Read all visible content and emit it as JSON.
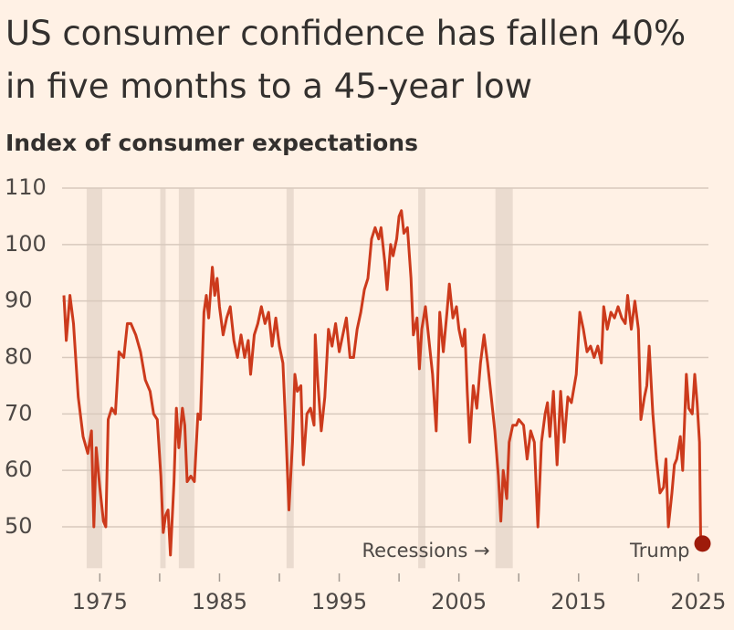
{
  "chart_data": {
    "type": "line",
    "title": "US consumer confidence has fallen 40% in five months to a 45-year low",
    "subtitle": "Index of consumer expectations",
    "x": [
      1972.0,
      1972.2,
      1972.5,
      1972.8,
      1973.2,
      1973.6,
      1974.0,
      1974.3,
      1974.5,
      1974.7,
      1975.0,
      1975.3,
      1975.5,
      1975.7,
      1976.0,
      1976.3,
      1976.6,
      1977.0,
      1977.3,
      1977.6,
      1978.0,
      1978.4,
      1978.8,
      1979.2,
      1979.5,
      1979.8,
      1980.1,
      1980.3,
      1980.5,
      1980.7,
      1980.9,
      1981.2,
      1981.4,
      1981.6,
      1981.9,
      1982.1,
      1982.3,
      1982.6,
      1982.9,
      1983.2,
      1983.4,
      1983.7,
      1983.9,
      1984.1,
      1984.4,
      1984.6,
      1984.8,
      1985.0,
      1985.3,
      1985.6,
      1985.9,
      1986.2,
      1986.5,
      1986.8,
      1987.1,
      1987.4,
      1987.6,
      1987.9,
      1988.2,
      1988.5,
      1988.8,
      1989.1,
      1989.4,
      1989.7,
      1990.0,
      1990.3,
      1990.5,
      1990.8,
      1991.1,
      1991.3,
      1991.5,
      1991.8,
      1992.0,
      1992.3,
      1992.6,
      1992.9,
      1993.0,
      1993.2,
      1993.5,
      1993.8,
      1994.1,
      1994.4,
      1994.7,
      1995.0,
      1995.3,
      1995.6,
      1995.9,
      1996.2,
      1996.5,
      1996.8,
      1997.1,
      1997.4,
      1997.7,
      1998.0,
      1998.3,
      1998.5,
      1998.8,
      1999.0,
      1999.3,
      1999.5,
      1999.8,
      2000.0,
      2000.2,
      2000.4,
      2000.7,
      2001.0,
      2001.2,
      2001.5,
      2001.7,
      2001.9,
      2002.2,
      2002.5,
      2002.8,
      2003.1,
      2003.4,
      2003.7,
      2004.0,
      2004.2,
      2004.5,
      2004.8,
      2005.0,
      2005.3,
      2005.5,
      2005.7,
      2005.9,
      2006.2,
      2006.5,
      2006.8,
      2007.1,
      2007.4,
      2007.7,
      2008.0,
      2008.3,
      2008.5,
      2008.7,
      2009.0,
      2009.2,
      2009.5,
      2009.8,
      2010.0,
      2010.4,
      2010.7,
      2011.0,
      2011.3,
      2011.6,
      2011.9,
      2012.2,
      2012.4,
      2012.6,
      2012.9,
      2013.2,
      2013.5,
      2013.8,
      2014.1,
      2014.4,
      2014.8,
      2015.1,
      2015.4,
      2015.7,
      2016.0,
      2016.3,
      2016.6,
      2016.9,
      2017.1,
      2017.4,
      2017.7,
      2018.0,
      2018.3,
      2018.6,
      2018.9,
      2019.1,
      2019.4,
      2019.7,
      2020.0,
      2020.2,
      2020.5,
      2020.7,
      2020.9,
      2021.2,
      2021.5,
      2021.8,
      2022.1,
      2022.3,
      2022.5,
      2022.8,
      2023.0,
      2023.2,
      2023.5,
      2023.7,
      2024.0,
      2024.2,
      2024.5,
      2024.7,
      2024.9,
      2025.1,
      2025.2
    ],
    "values": [
      91,
      83,
      91,
      86,
      73,
      66,
      63,
      67,
      50,
      64,
      57,
      51,
      50,
      69,
      71,
      70,
      81,
      80,
      86,
      86,
      84,
      81,
      76,
      74,
      70,
      69,
      59,
      49,
      52,
      53,
      45,
      58,
      71,
      64,
      71,
      68,
      58,
      59,
      58,
      70,
      69,
      88,
      91,
      87,
      96,
      91,
      94,
      89,
      84,
      87,
      89,
      83,
      80,
      84,
      80,
      83,
      77,
      84,
      86,
      89,
      86,
      88,
      82,
      87,
      82,
      79,
      69,
      53,
      65,
      77,
      74,
      75,
      61,
      70,
      71,
      68,
      84,
      76,
      67,
      73,
      85,
      82,
      86,
      81,
      84,
      87,
      80,
      80,
      85,
      88,
      92,
      94,
      101,
      103,
      101,
      103,
      97,
      92,
      100,
      98,
      101,
      105,
      106,
      102,
      103,
      94,
      84,
      87,
      78,
      85,
      89,
      83,
      77,
      67,
      88,
      81,
      88,
      93,
      87,
      89,
      85,
      82,
      85,
      74,
      65,
      75,
      71,
      79,
      84,
      79,
      73,
      67,
      59,
      51,
      60,
      55,
      65,
      68,
      68,
      69,
      68,
      62,
      67,
      65,
      50,
      65,
      70,
      72,
      66,
      74,
      61,
      74,
      65,
      73,
      72,
      77,
      88,
      85,
      81,
      82,
      80,
      82,
      79,
      89,
      85,
      88,
      87,
      89,
      87,
      86,
      91,
      85,
      90,
      85,
      69,
      73,
      75,
      82,
      70,
      62,
      56,
      57,
      62,
      50,
      56,
      61,
      62,
      66,
      60,
      77,
      71,
      70,
      77,
      72,
      65,
      48
    ],
    "color": "#cc3a1c",
    "recessions": [
      [
        1973.9,
        1975.2
      ],
      [
        1980.05,
        1980.5
      ],
      [
        1981.6,
        1982.9
      ],
      [
        1990.6,
        1991.2
      ],
      [
        2001.6,
        2002.2
      ],
      [
        2008.05,
        2009.5
      ]
    ],
    "recession_color": "#eadbcf",
    "xlim": [
      1972,
      2026
    ],
    "ylim": [
      43,
      110
    ],
    "xticks": [
      1975,
      1985,
      1995,
      2005,
      2015,
      2025
    ],
    "x_minor_ticks": [
      1980,
      1990,
      2000,
      2010,
      2020
    ],
    "yticks": [
      50,
      60,
      70,
      80,
      90,
      100,
      110
    ],
    "grid": true,
    "annotations": [
      {
        "text": "Recessions →",
        "x": 2008.05
      },
      {
        "text": "Trump",
        "x": 2025.2
      }
    ]
  }
}
